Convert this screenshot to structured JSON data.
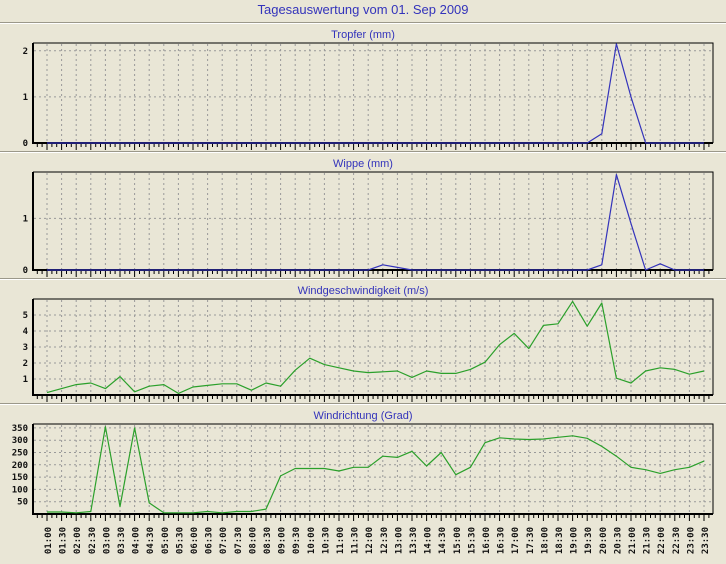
{
  "page": {
    "title": "Tagesauswertung vom 01. Sep 2009"
  },
  "colors": {
    "page_bg": "#e9e6d6",
    "title_text": "#3333bb",
    "chart_title_text": "#3333bb",
    "precip_line": "#3333bb",
    "wind_line": "#2ba02b",
    "grid": "#999999",
    "axis": "#000000",
    "tick_label": "#111111",
    "separator": "#9b988a"
  },
  "x_labels": [
    "01:00",
    "01:30",
    "02:00",
    "02:30",
    "03:00",
    "03:30",
    "04:00",
    "04:30",
    "05:00",
    "05:30",
    "06:00",
    "06:30",
    "07:00",
    "07:30",
    "08:00",
    "08:30",
    "09:00",
    "09:30",
    "10:00",
    "10:30",
    "11:00",
    "11:30",
    "12:00",
    "12:30",
    "13:00",
    "13:30",
    "14:00",
    "14:30",
    "15:00",
    "15:30",
    "16:00",
    "16:30",
    "17:00",
    "17:30",
    "18:00",
    "18:30",
    "19:00",
    "19:30",
    "20:00",
    "20:30",
    "21:00",
    "21:30",
    "22:00",
    "22:30",
    "23:00",
    "23:30"
  ],
  "x_tick_interval": "30 min",
  "chart_data": [
    {
      "type": "line",
      "title": "Tropfer (mm)",
      "color": "#3333bb",
      "y_ticks": [
        0,
        1,
        2
      ],
      "ylim": [
        0,
        2.17
      ],
      "grid": true,
      "legend": "none",
      "values": [
        0,
        0,
        0,
        0,
        0,
        0,
        0,
        0,
        0,
        0,
        0,
        0,
        0,
        0,
        0,
        0,
        0,
        0,
        0,
        0,
        0,
        0,
        0,
        0,
        0,
        0,
        0,
        0,
        0,
        0,
        0,
        0,
        0,
        0,
        0,
        0,
        0,
        0,
        0.2,
        2.15,
        1.0,
        0,
        0,
        0,
        0,
        0
      ]
    },
    {
      "type": "line",
      "title": "Wippe (mm)",
      "color": "#3333bb",
      "y_ticks": [
        0,
        1
      ],
      "ylim": [
        0,
        1.9
      ],
      "grid": true,
      "legend": "none",
      "values": [
        0,
        0,
        0,
        0,
        0,
        0,
        0,
        0,
        0,
        0,
        0,
        0,
        0,
        0,
        0,
        0,
        0,
        0,
        0,
        0,
        0,
        0,
        0,
        0.1,
        0.05,
        0,
        0,
        0,
        0,
        0,
        0,
        0,
        0,
        0,
        0,
        0,
        0,
        0,
        0.1,
        1.85,
        0.9,
        0,
        0.12,
        0,
        0,
        0
      ]
    },
    {
      "type": "line",
      "title": "Windgeschwindigkeit (m/s)",
      "color": "#2ba02b",
      "y_ticks": [
        1,
        2,
        3,
        4,
        5
      ],
      "ylim": [
        0,
        6
      ],
      "grid": true,
      "legend": "none",
      "values": [
        0.15,
        0.4,
        0.65,
        0.75,
        0.4,
        1.15,
        0.2,
        0.55,
        0.65,
        0.1,
        0.5,
        0.6,
        0.7,
        0.7,
        0.3,
        0.75,
        0.55,
        1.55,
        2.3,
        1.9,
        1.7,
        1.5,
        1.4,
        1.45,
        1.5,
        1.1,
        1.5,
        1.35,
        1.35,
        1.6,
        2.05,
        3.15,
        3.85,
        2.9,
        4.35,
        4.45,
        5.85,
        4.3,
        5.75,
        1.05,
        0.75,
        1.5,
        1.7,
        1.6,
        1.3,
        1.5
      ]
    },
    {
      "type": "line",
      "title": "Windrichtung (Grad)",
      "color": "#2ba02b",
      "y_ticks": [
        50,
        100,
        150,
        200,
        250,
        300,
        350
      ],
      "ylim": [
        0,
        366
      ],
      "grid": true,
      "legend": "none",
      "show_x_labels": true,
      "values": [
        8,
        8,
        5,
        10,
        355,
        30,
        350,
        45,
        5,
        5,
        5,
        10,
        5,
        10,
        10,
        20,
        155,
        185,
        185,
        185,
        175,
        190,
        190,
        235,
        230,
        255,
        195,
        250,
        160,
        190,
        290,
        310,
        305,
        303,
        305,
        312,
        318,
        308,
        275,
        235,
        190,
        180,
        165,
        180,
        190,
        215
      ]
    }
  ]
}
